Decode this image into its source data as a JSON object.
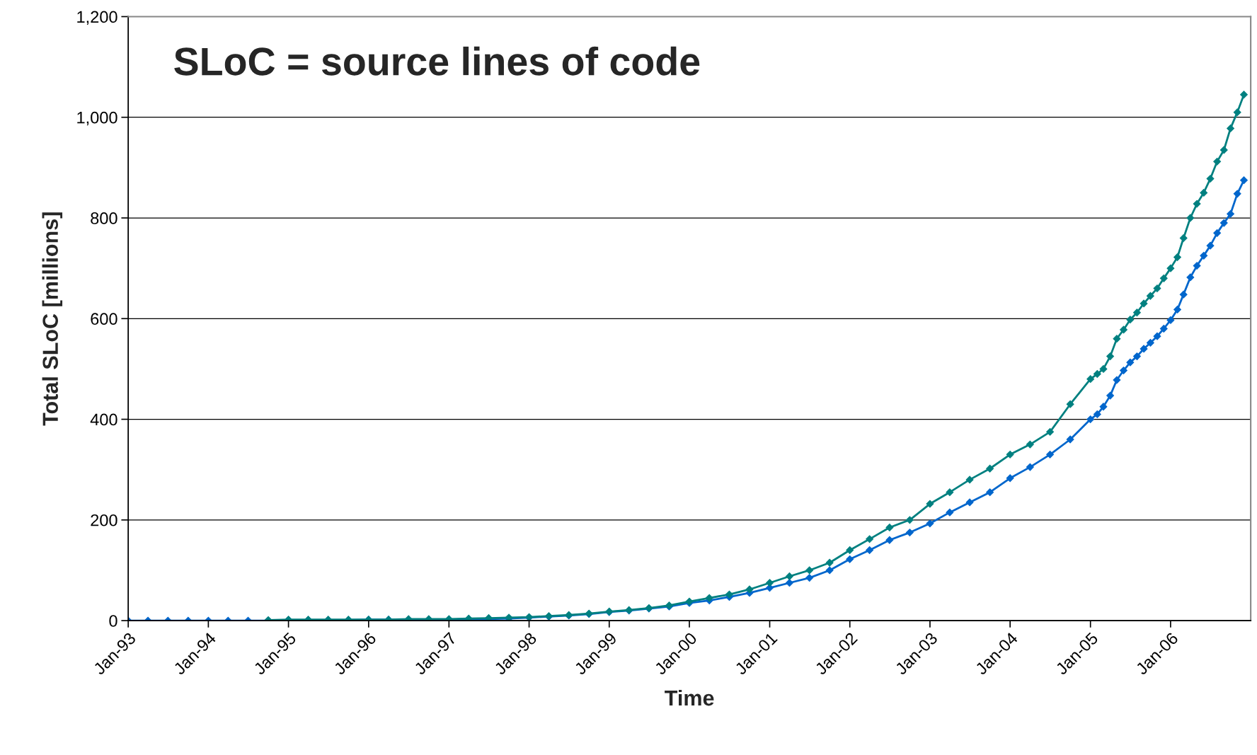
{
  "chart_data": {
    "type": "line",
    "xlabel": "Time",
    "ylabel": "Total SLoC [millions]",
    "annotations": [
      "SLoC = source lines of code"
    ],
    "series": [
      {
        "color": "#0066cc",
        "x": [
          "1993-01",
          "1993-04",
          "1993-07",
          "1993-10",
          "1994-01",
          "1994-04",
          "1994-07",
          "1994-10",
          "1995-01",
          "1995-04",
          "1995-07",
          "1995-10",
          "1996-01",
          "1996-04",
          "1996-07",
          "1996-10",
          "1997-01",
          "1997-04",
          "1997-07",
          "1997-10",
          "1998-01",
          "1998-04",
          "1998-07",
          "1998-10",
          "1999-01",
          "1999-04",
          "1999-07",
          "1999-10",
          "2000-01",
          "2000-04",
          "2000-07",
          "2000-10",
          "2001-01",
          "2001-04",
          "2001-07",
          "2001-10",
          "2002-01",
          "2002-04",
          "2002-07",
          "2002-10",
          "2003-01",
          "2003-04",
          "2003-07",
          "2003-10",
          "2004-01",
          "2004-04",
          "2004-07",
          "2004-10",
          "2005-01",
          "2005-02",
          "2005-03",
          "2005-04",
          "2005-05",
          "2005-06",
          "2005-07",
          "2005-08",
          "2005-09",
          "2005-10",
          "2005-11",
          "2005-12",
          "2006-01",
          "2006-02",
          "2006-03",
          "2006-04",
          "2006-05",
          "2006-06",
          "2006-07",
          "2006-08",
          "2006-09",
          "2006-10",
          "2006-11",
          "2006-12"
        ],
        "values": [
          0,
          0,
          0,
          0,
          0,
          0,
          0,
          0,
          1,
          1,
          1,
          1,
          2,
          2,
          2,
          2,
          2,
          3,
          3,
          4,
          6,
          8,
          10,
          13,
          17,
          20,
          24,
          28,
          35,
          40,
          47,
          55,
          65,
          75,
          85,
          100,
          122,
          140,
          160,
          175,
          193,
          215,
          235,
          255,
          283,
          305,
          330,
          360,
          400,
          410,
          425,
          447,
          478,
          497,
          513,
          525,
          540,
          552,
          565,
          580,
          597,
          618,
          648,
          682,
          705,
          725,
          745,
          770,
          790,
          808,
          848,
          875
        ]
      },
      {
        "color": "#008080",
        "x": [
          "1994-10",
          "1995-01",
          "1995-04",
          "1995-07",
          "1995-10",
          "1996-01",
          "1996-04",
          "1996-07",
          "1996-10",
          "1997-01",
          "1997-04",
          "1997-07",
          "1997-10",
          "1998-01",
          "1998-04",
          "1998-07",
          "1998-10",
          "1999-01",
          "1999-04",
          "1999-07",
          "1999-10",
          "2000-01",
          "2000-04",
          "2000-07",
          "2000-10",
          "2001-01",
          "2001-04",
          "2001-07",
          "2001-10",
          "2002-01",
          "2002-04",
          "2002-07",
          "2002-10",
          "2003-01",
          "2003-04",
          "2003-07",
          "2003-10",
          "2004-01",
          "2004-04",
          "2004-07",
          "2004-10",
          "2005-01",
          "2005-02",
          "2005-03",
          "2005-04",
          "2005-05",
          "2005-06",
          "2005-07",
          "2005-08",
          "2005-09",
          "2005-10",
          "2005-11",
          "2005-12",
          "2006-01",
          "2006-02",
          "2006-03",
          "2006-04",
          "2006-05",
          "2006-06",
          "2006-07",
          "2006-08",
          "2006-09",
          "2006-10",
          "2006-11",
          "2006-12"
        ],
        "values": [
          1,
          2,
          2,
          2,
          2,
          2,
          2,
          3,
          3,
          3,
          4,
          5,
          6,
          7,
          9,
          11,
          14,
          18,
          21,
          25,
          30,
          38,
          45,
          52,
          62,
          75,
          88,
          100,
          115,
          140,
          162,
          185,
          200,
          232,
          255,
          280,
          302,
          330,
          350,
          375,
          430,
          480,
          490,
          500,
          525,
          560,
          578,
          598,
          612,
          630,
          645,
          660,
          680,
          700,
          722,
          760,
          800,
          828,
          850,
          878,
          912,
          935,
          978,
          1010,
          1045
        ]
      }
    ],
    "xlim": [
      "1993-01-01",
      "2007-01-01"
    ],
    "xticks": [
      {
        "value": "1993-01",
        "label": "Jan-93"
      },
      {
        "value": "1994-01",
        "label": "Jan-94"
      },
      {
        "value": "1995-01",
        "label": "Jan-95"
      },
      {
        "value": "1996-01",
        "label": "Jan-96"
      },
      {
        "value": "1997-01",
        "label": "Jan-97"
      },
      {
        "value": "1998-01",
        "label": "Jan-98"
      },
      {
        "value": "1999-01",
        "label": "Jan-99"
      },
      {
        "value": "2000-01",
        "label": "Jan-00"
      },
      {
        "value": "2001-01",
        "label": "Jan-01"
      },
      {
        "value": "2002-01",
        "label": "Jan-02"
      },
      {
        "value": "2003-01",
        "label": "Jan-03"
      },
      {
        "value": "2004-01",
        "label": "Jan-04"
      },
      {
        "value": "2005-01",
        "label": "Jan-05"
      },
      {
        "value": "2006-01",
        "label": "Jan-06"
      }
    ],
    "ylim": [
      0,
      1200
    ],
    "yticks": [
      {
        "value": 0,
        "label": "0"
      },
      {
        "value": 200,
        "label": "200"
      },
      {
        "value": 400,
        "label": "400"
      },
      {
        "value": 600,
        "label": "600"
      },
      {
        "value": 800,
        "label": "800"
      },
      {
        "value": 1000,
        "label": "1,000"
      },
      {
        "value": 1200,
        "label": "1,200"
      }
    ],
    "grid": "y",
    "marker": "diamond",
    "line_style": "solid"
  }
}
